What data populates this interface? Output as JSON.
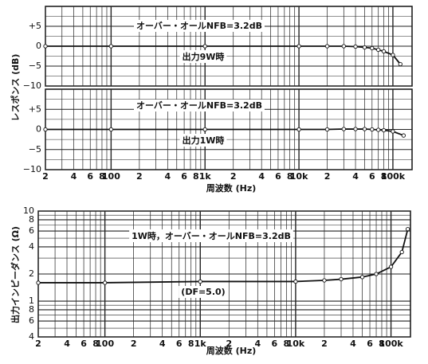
{
  "chart_data": [
    {
      "type": "line",
      "ylabel": "レスポンス (dB)",
      "annotations": [
        "オーバー・オールNFB=3.2dB",
        "出力9W時"
      ],
      "xscale": "log",
      "xlim": [
        20,
        160000
      ],
      "ylim": [
        -10,
        10
      ],
      "yticks": [
        {
          "value": -10,
          "label": "−10"
        },
        {
          "value": -5,
          "label": "−5"
        },
        0,
        {
          "value": 5,
          "label": "+5"
        }
      ],
      "yminor": [
        -7.5,
        -2.5,
        2.5,
        7.5
      ],
      "xgrid": [
        20,
        30,
        40,
        50,
        60,
        70,
        80,
        90,
        100,
        200,
        300,
        400,
        500,
        600,
        700,
        800,
        900,
        1000,
        2000,
        3000,
        4000,
        5000,
        6000,
        7000,
        8000,
        9000,
        10000,
        20000,
        30000,
        40000,
        50000,
        60000,
        70000,
        80000,
        90000,
        100000
      ],
      "color": "#111111",
      "x": [
        20,
        100,
        1000,
        10000,
        20000,
        30000,
        40000,
        50000,
        60000,
        70000,
        80000,
        100000,
        120000
      ],
      "values": [
        0,
        0,
        0,
        0,
        0,
        0,
        -0.1,
        -0.3,
        -0.5,
        -0.9,
        -1.3,
        -2.2,
        -4.5
      ]
    },
    {
      "type": "line",
      "xlabel": "周波数 (Hz)",
      "annotations": [
        "オーバー・オールNFB=3.2dB",
        "出力1W時"
      ],
      "xscale": "log",
      "xlim": [
        20,
        160000
      ],
      "ylim": [
        -10,
        10
      ],
      "yticks": [
        {
          "value": -10,
          "label": "−10"
        },
        {
          "value": -5,
          "label": "−5"
        },
        0,
        {
          "value": 5,
          "label": "+5"
        }
      ],
      "yminor": [
        -7.5,
        -2.5,
        2.5,
        7.5
      ],
      "xticks": [
        {
          "value": 20,
          "label": "2"
        },
        {
          "value": 40,
          "label": "4"
        },
        {
          "value": 60,
          "label": "6"
        },
        {
          "value": 80,
          "label": "8"
        },
        100,
        {
          "value": 200,
          "label": "2"
        },
        {
          "value": 400,
          "label": "4"
        },
        {
          "value": 600,
          "label": "6"
        },
        {
          "value": 800,
          "label": "8"
        },
        {
          "value": 1000,
          "label": "1k"
        },
        {
          "value": 2000,
          "label": "2"
        },
        {
          "value": 4000,
          "label": "4"
        },
        {
          "value": 6000,
          "label": "6"
        },
        {
          "value": 8000,
          "label": "8"
        },
        {
          "value": 10000,
          "label": "10k"
        },
        {
          "value": 20000,
          "label": "2"
        },
        {
          "value": 40000,
          "label": "4"
        },
        {
          "value": 60000,
          "label": "6"
        },
        {
          "value": 80000,
          "label": "8"
        },
        {
          "value": 100000,
          "label": "100k"
        }
      ],
      "xgrid": [
        20,
        30,
        40,
        50,
        60,
        70,
        80,
        90,
        100,
        200,
        300,
        400,
        500,
        600,
        700,
        800,
        900,
        1000,
        2000,
        3000,
        4000,
        5000,
        6000,
        7000,
        8000,
        9000,
        10000,
        20000,
        30000,
        40000,
        50000,
        60000,
        70000,
        80000,
        90000,
        100000
      ],
      "color": "#111111",
      "x": [
        20,
        100,
        1000,
        10000,
        20000,
        30000,
        40000,
        50000,
        60000,
        70000,
        80000,
        100000,
        130000
      ],
      "values": [
        0,
        0,
        0,
        0,
        0,
        0.1,
        0.1,
        0.1,
        0,
        -0.1,
        -0.2,
        -0.5,
        -1.5
      ]
    },
    {
      "type": "line",
      "ylabel": "出力インピーダンス (Ω)",
      "xlabel": "周波数 (Hz)",
      "annotations": [
        "1W時，オーバー・オールNFB=3.2dB",
        "(DF=5.0)"
      ],
      "xscale": "log",
      "yscale": "log",
      "xlim": [
        20,
        160000
      ],
      "ylim": [
        0.4,
        10
      ],
      "yticks": [
        {
          "value": 0.4,
          "label": "4"
        },
        {
          "value": 0.6,
          "label": "6"
        },
        {
          "value": 0.8,
          "label": "8"
        },
        1,
        2,
        4,
        6,
        8,
        10
      ],
      "yminor": [
        0.5,
        0.7,
        0.9,
        3,
        5,
        7,
        9
      ],
      "xticks": [
        {
          "value": 20,
          "label": "2"
        },
        {
          "value": 40,
          "label": "4"
        },
        {
          "value": 60,
          "label": "6"
        },
        {
          "value": 80,
          "label": "8"
        },
        100,
        {
          "value": 200,
          "label": "2"
        },
        {
          "value": 400,
          "label": "4"
        },
        {
          "value": 600,
          "label": "6"
        },
        {
          "value": 800,
          "label": "8"
        },
        {
          "value": 1000,
          "label": "1k"
        },
        {
          "value": 2000,
          "label": "2"
        },
        {
          "value": 4000,
          "label": "4"
        },
        {
          "value": 6000,
          "label": "6"
        },
        {
          "value": 8000,
          "label": "8"
        },
        {
          "value": 10000,
          "label": "10k"
        },
        {
          "value": 20000,
          "label": "2"
        },
        {
          "value": 40000,
          "label": "4"
        },
        {
          "value": 60000,
          "label": "6"
        },
        {
          "value": 80000,
          "label": "8"
        },
        {
          "value": 100000,
          "label": "100k"
        }
      ],
      "xgrid": [
        20,
        30,
        40,
        50,
        60,
        70,
        80,
        90,
        100,
        200,
        300,
        400,
        500,
        600,
        700,
        800,
        900,
        1000,
        2000,
        3000,
        4000,
        5000,
        6000,
        7000,
        8000,
        9000,
        10000,
        20000,
        30000,
        40000,
        50000,
        60000,
        70000,
        80000,
        90000,
        100000
      ],
      "color": "#111111",
      "x": [
        20,
        100,
        1000,
        10000,
        20000,
        30000,
        50000,
        70000,
        100000,
        130000,
        150000
      ],
      "values": [
        1.6,
        1.6,
        1.65,
        1.65,
        1.7,
        1.75,
        1.85,
        2.0,
        2.4,
        3.5,
        6.3
      ]
    }
  ]
}
